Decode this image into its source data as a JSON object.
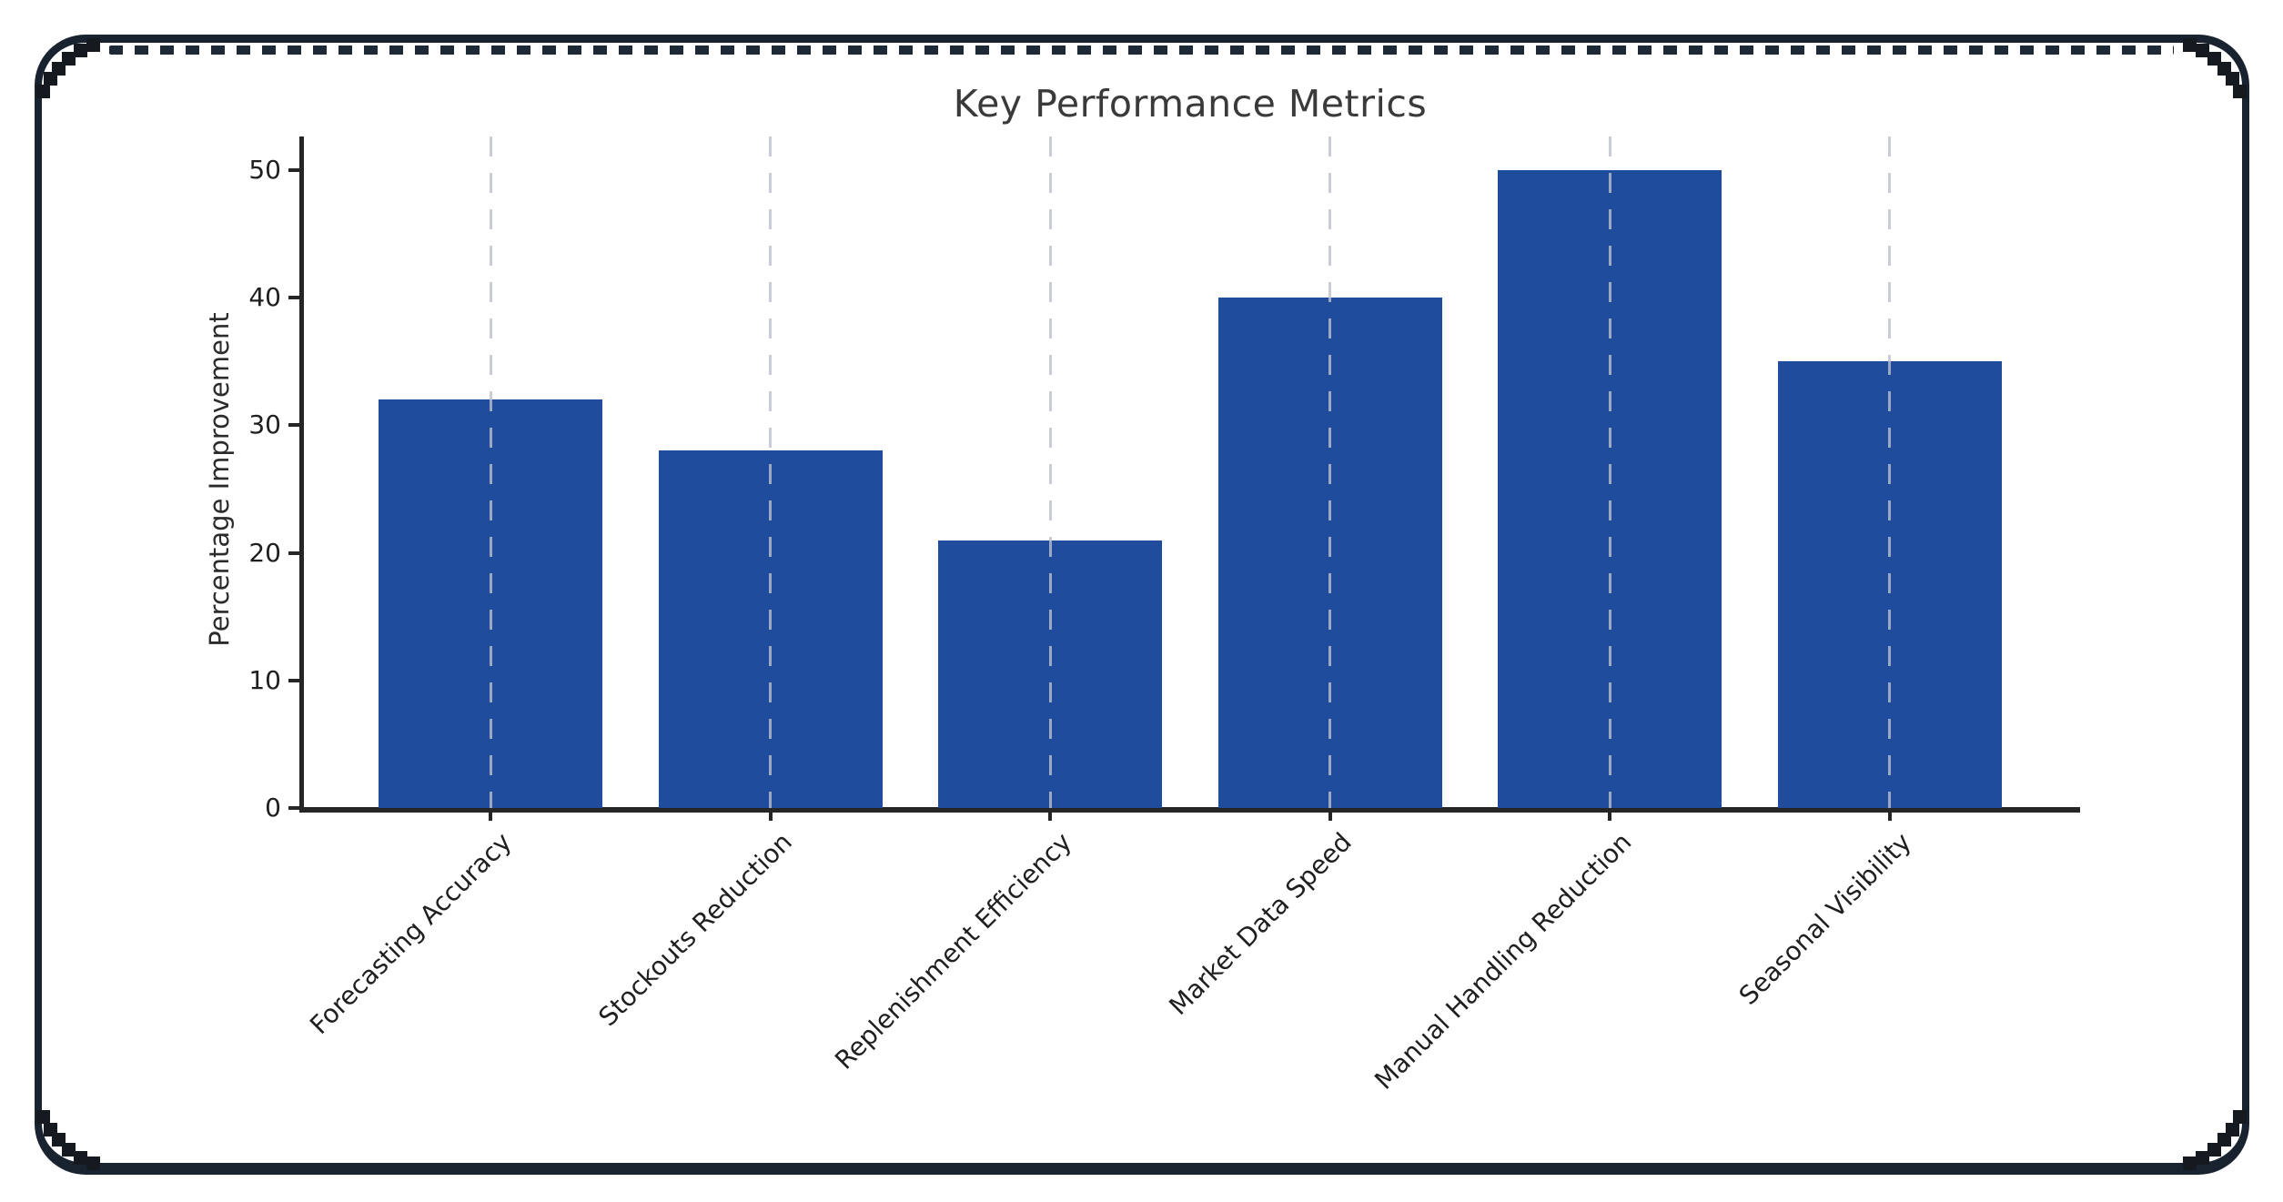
{
  "frame": {
    "color": "#18232f",
    "pixel_step_color": "#151a20",
    "dash_color": "#1d2936"
  },
  "chart_data": {
    "type": "bar",
    "title": "Key Performance Metrics",
    "xlabel": "",
    "ylabel": "Percentage Improvement",
    "categories": [
      "Forecasting Accuracy",
      "Stockouts Reduction",
      "Replenishment Efficiency",
      "Market Data Speed",
      "Manual Handling Reduction",
      "Seasonal Visibility"
    ],
    "values": [
      32,
      28,
      21,
      40,
      50,
      35
    ],
    "yticks": [
      0,
      10,
      20,
      30,
      40,
      50
    ],
    "ylim": [
      0,
      52.6
    ],
    "bar_color": "#1f4c9c",
    "axis_color": "#262626",
    "grid": {
      "axis": "x",
      "style": "dashed",
      "color": "#c9ccd5"
    },
    "legend_position": "none"
  }
}
